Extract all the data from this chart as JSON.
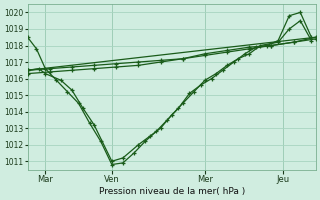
{
  "xlabel": "Pression niveau de la mer( hPa )",
  "bg_color": "#d0ede0",
  "grid_color": "#a8d4c0",
  "line_color": "#1a5c1a",
  "ylim": [
    1010.5,
    1020.5
  ],
  "yticks": [
    1011,
    1012,
    1013,
    1014,
    1015,
    1016,
    1017,
    1018,
    1019,
    1020
  ],
  "xlim": [
    0,
    13
  ],
  "day_ticks": [
    0.8,
    3.8,
    8.0,
    11.5
  ],
  "day_labels": [
    "Mar",
    "Ven",
    "Mer",
    "Jeu"
  ],
  "vlines": [
    0.8,
    3.8,
    8.0,
    11.5
  ],
  "series1_x": [
    0,
    0.4,
    0.8,
    1.3,
    1.8,
    2.3,
    2.8,
    3.3,
    3.8,
    4.3,
    4.8,
    5.3,
    5.8,
    6.3,
    6.8,
    7.3,
    7.8,
    8.3,
    8.8,
    9.3,
    9.8,
    10.3,
    10.8,
    11.3,
    11.8,
    12.3,
    12.8
  ],
  "series1_y": [
    1018.5,
    1017.8,
    1016.6,
    1015.9,
    1015.2,
    1014.5,
    1013.3,
    1012.2,
    1010.8,
    1010.9,
    1011.5,
    1012.2,
    1012.8,
    1013.5,
    1014.2,
    1015.1,
    1015.6,
    1016.0,
    1016.5,
    1017.0,
    1017.5,
    1017.9,
    1018.0,
    1018.3,
    1019.8,
    1020.0,
    1018.5
  ],
  "series2_x": [
    0,
    1.0,
    2.0,
    3.0,
    4.0,
    5.0,
    6.0,
    7.0,
    8.0,
    9.0,
    10.0,
    11.0,
    12.0,
    13.0
  ],
  "series2_y": [
    1016.5,
    1016.6,
    1016.7,
    1016.8,
    1016.9,
    1017.0,
    1017.1,
    1017.2,
    1017.4,
    1017.6,
    1017.8,
    1018.0,
    1018.2,
    1018.5
  ],
  "series3_x": [
    0,
    1.0,
    2.0,
    3.0,
    4.0,
    5.0,
    6.0,
    7.0,
    8.0,
    9.0,
    10.0,
    11.0,
    12.0,
    13.0
  ],
  "series3_y": [
    1016.3,
    1016.4,
    1016.5,
    1016.6,
    1016.7,
    1016.8,
    1017.0,
    1017.2,
    1017.5,
    1017.7,
    1017.9,
    1018.0,
    1018.2,
    1018.4
  ],
  "series4_x": [
    0,
    13.0
  ],
  "series4_y": [
    1016.5,
    1018.5
  ],
  "series5_x": [
    0,
    0.5,
    0.8,
    1.5,
    2.0,
    2.5,
    3.0,
    3.8,
    4.3,
    5.0,
    5.5,
    6.0,
    6.5,
    7.0,
    7.5,
    8.0,
    8.5,
    9.0,
    9.5,
    10.0,
    10.5,
    11.3,
    11.8,
    12.3,
    12.8
  ],
  "series5_y": [
    1016.5,
    1016.6,
    1016.3,
    1015.9,
    1015.3,
    1014.2,
    1013.2,
    1011.0,
    1011.2,
    1012.0,
    1012.5,
    1013.0,
    1013.8,
    1014.5,
    1015.2,
    1015.9,
    1016.3,
    1016.8,
    1017.2,
    1017.5,
    1018.0,
    1018.2,
    1019.0,
    1019.5,
    1018.3
  ]
}
